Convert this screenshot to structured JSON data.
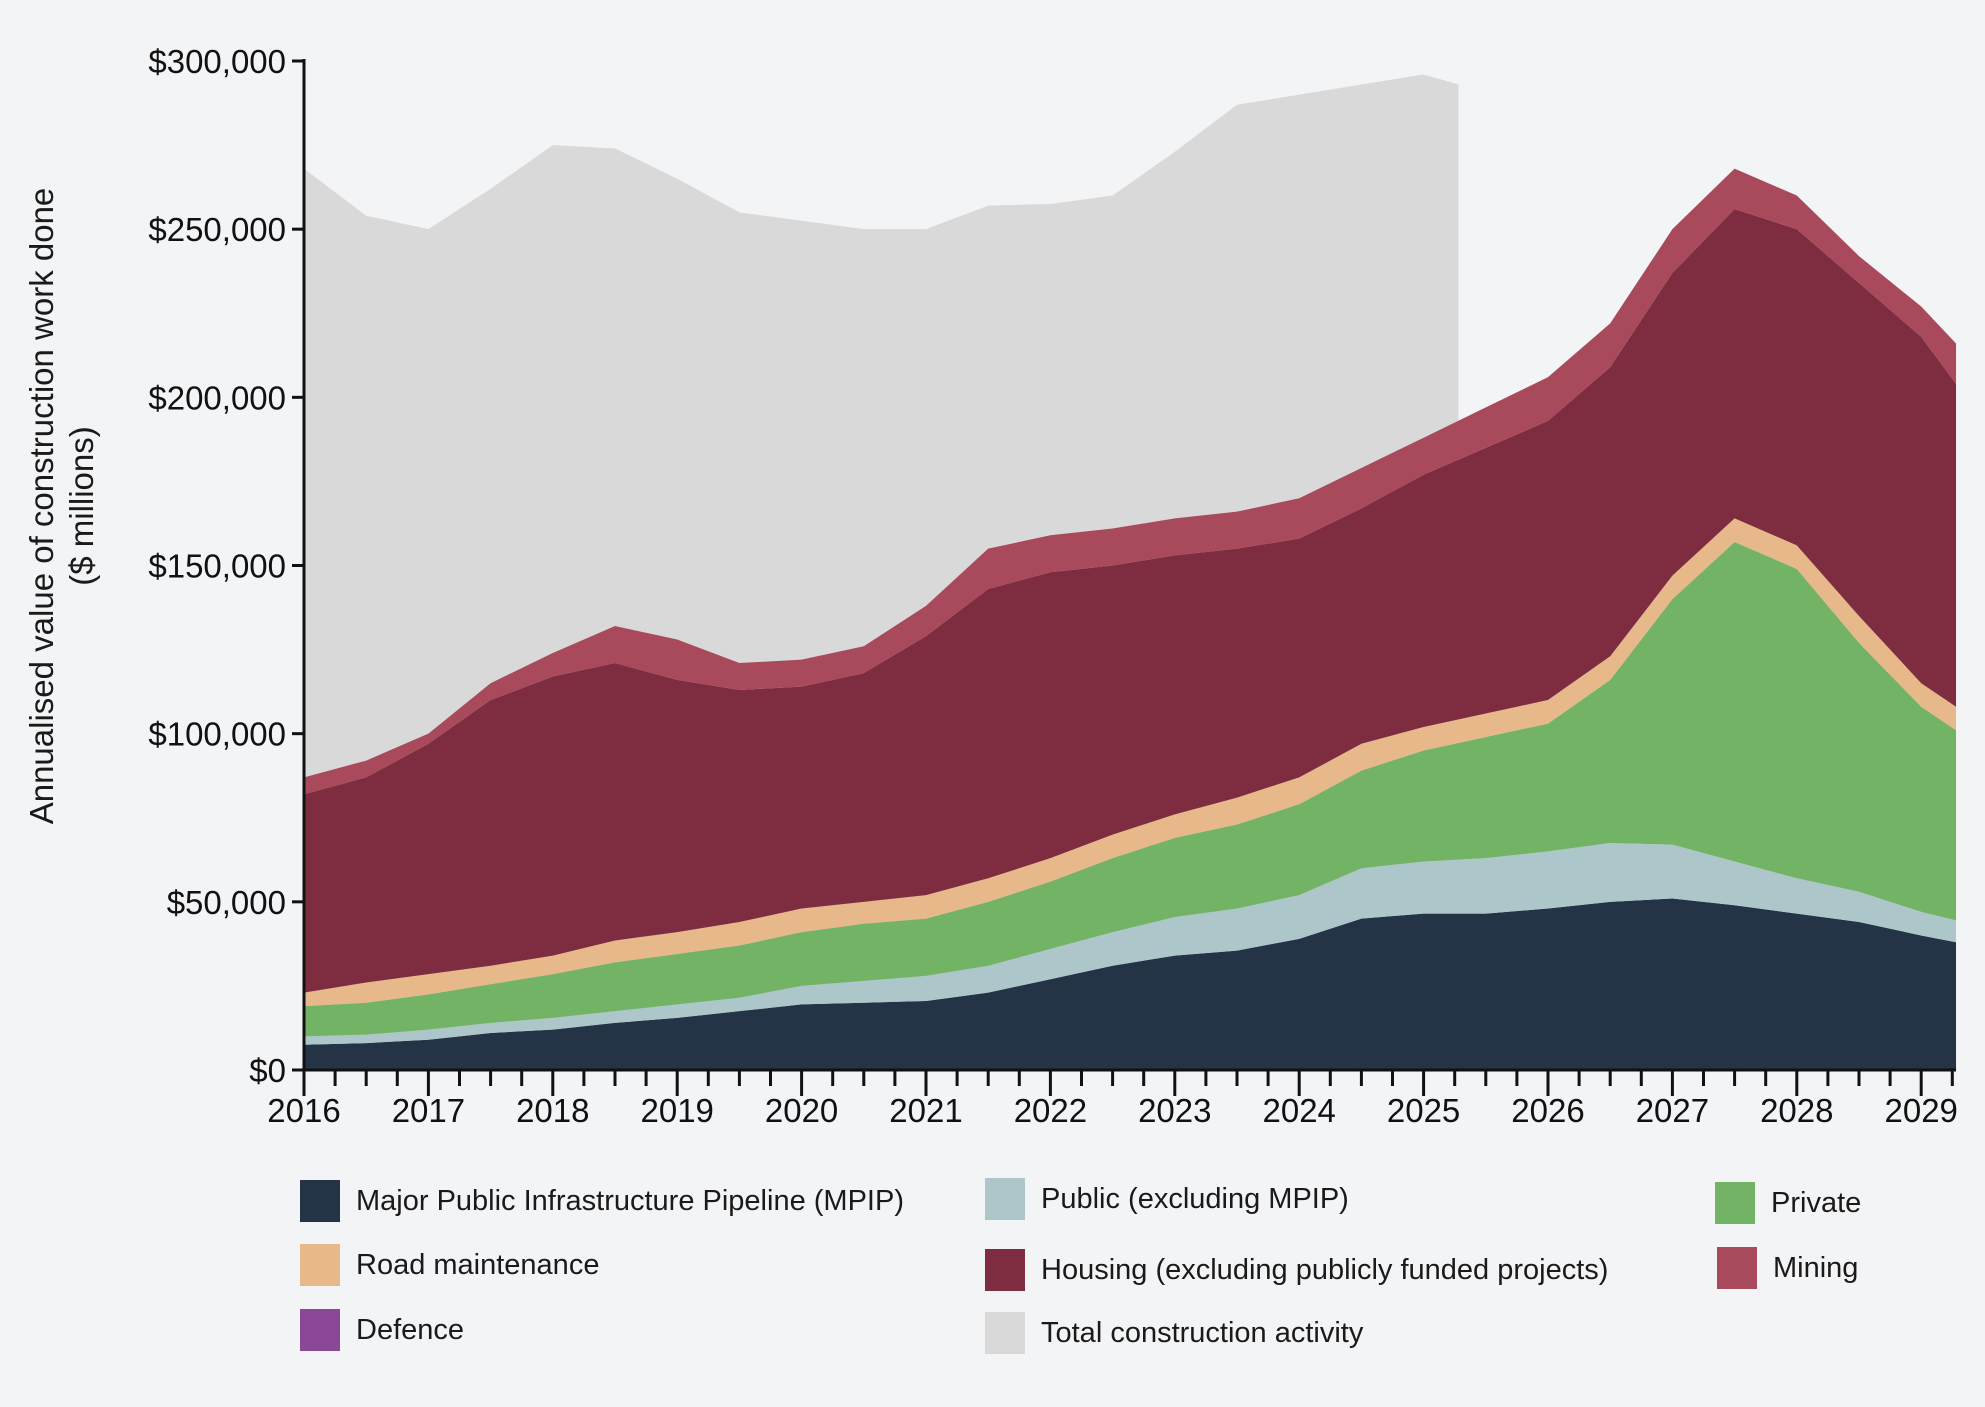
{
  "chart_data": {
    "type": "area",
    "stacked": true,
    "ylabel": "Annualised value of construction work done",
    "ylabel_units": "($ millions)",
    "ylim": [
      0,
      300000
    ],
    "xlim": [
      2016,
      2029.28
    ],
    "yticks": [
      0,
      50000,
      100000,
      150000,
      200000,
      250000,
      300000
    ],
    "ytick_labels": [
      "$0",
      "$50,000",
      "$100,000",
      "$150,000",
      "$200,000",
      "$250,000",
      "$300,000"
    ],
    "xticks": [
      2016,
      2017,
      2018,
      2019,
      2020,
      2021,
      2022,
      2023,
      2024,
      2025,
      2026,
      2027,
      2028,
      2029
    ],
    "xtick_labels": [
      "2016",
      "2017",
      "2018",
      "2019",
      "2020",
      "2021",
      "2022",
      "2023",
      "2024",
      "2025",
      "2026",
      "2027",
      "2028",
      "2029"
    ],
    "grid": false,
    "legend_position": "bottom",
    "x": [
      2016,
      2016.5,
      2017,
      2017.5,
      2018,
      2018.5,
      2019,
      2019.5,
      2020,
      2020.5,
      2021,
      2021.5,
      2022,
      2022.5,
      2023,
      2023.5,
      2024,
      2024.5,
      2025,
      2025.5,
      2026,
      2026.5,
      2027,
      2027.5,
      2028,
      2028.5,
      2029,
      2029.28
    ],
    "series": [
      {
        "name": "Major Public Infrastructure Pipeline (MPIP)",
        "color": "#243446",
        "values": [
          7500,
          8000,
          9000,
          11000,
          12000,
          14000,
          15500,
          17500,
          19500,
          20000,
          20500,
          23000,
          27000,
          31000,
          34000,
          35500,
          39000,
          45000,
          46500,
          46500,
          48000,
          50000,
          51000,
          49000,
          46500,
          44000,
          40000,
          38000
        ]
      },
      {
        "name": "Public (excluding MPIP)",
        "color": "#adc6ca",
        "values": [
          2500,
          2500,
          3000,
          3000,
          3500,
          3500,
          4000,
          4000,
          5500,
          6500,
          7500,
          8000,
          9000,
          10000,
          11500,
          12500,
          13000,
          15000,
          15500,
          16500,
          17000,
          17500,
          16000,
          13000,
          10500,
          9000,
          7000,
          6500
        ]
      },
      {
        "name": "Private",
        "color": "#73b366",
        "values": [
          9000,
          9500,
          10500,
          11500,
          13000,
          14500,
          15000,
          15500,
          16000,
          17000,
          17000,
          19000,
          20000,
          22000,
          23500,
          25000,
          27000,
          29000,
          33000,
          36000,
          38000,
          48500,
          73000,
          95000,
          92000,
          74000,
          61000,
          56500
        ]
      },
      {
        "name": "Road maintenance",
        "color": "#e7b88a",
        "values": [
          4000,
          6000,
          6000,
          5500,
          5500,
          6500,
          6500,
          7000,
          7000,
          6500,
          7000,
          7000,
          7000,
          7000,
          7000,
          8000,
          8000,
          8000,
          7000,
          7000,
          7000,
          7000,
          7000,
          7000,
          7000,
          8000,
          7000,
          7000
        ]
      },
      {
        "name": "Defence",
        "color": "#8b4797",
        "values": [
          0,
          0,
          0,
          0,
          0,
          0,
          0,
          0,
          0,
          0,
          0,
          0,
          0,
          0,
          0,
          0,
          0,
          0,
          0,
          0,
          0,
          0,
          0,
          0,
          0,
          0,
          0,
          0
        ]
      },
      {
        "name": "Housing (excluding publicly funded projects)",
        "color": "#7e2c40",
        "values": [
          59000,
          61000,
          68500,
          79000,
          83000,
          82500,
          75000,
          69000,
          66000,
          68000,
          77000,
          86000,
          85000,
          80000,
          77000,
          74000,
          71000,
          70000,
          75000,
          79000,
          83000,
          86000,
          90000,
          92000,
          94000,
          99000,
          103000,
          96000
        ]
      },
      {
        "name": "Mining",
        "color": "#a84a5b",
        "values": [
          5000,
          5000,
          3000,
          5000,
          7000,
          11000,
          12000,
          8000,
          8000,
          8000,
          9000,
          12000,
          11000,
          11000,
          11000,
          11000,
          12000,
          12000,
          11000,
          12000,
          13000,
          13000,
          13000,
          12000,
          10000,
          8000,
          9000,
          12000
        ]
      }
    ],
    "total": {
      "name": "Total construction activity",
      "color": "#d9d9d9",
      "x": [
        2016,
        2016.5,
        2017,
        2017.5,
        2018,
        2018.5,
        2019,
        2019.5,
        2020,
        2020.5,
        2021,
        2021.5,
        2022,
        2022.5,
        2023,
        2023.5,
        2024,
        2024.5,
        2025,
        2025.28
      ],
      "values": [
        268000,
        254000,
        250000,
        262000,
        275000,
        274000,
        265000,
        255000,
        252500,
        250000,
        250000,
        257000,
        257500,
        260000,
        273000,
        287000,
        290000,
        293000,
        296000,
        293000
      ]
    }
  }
}
